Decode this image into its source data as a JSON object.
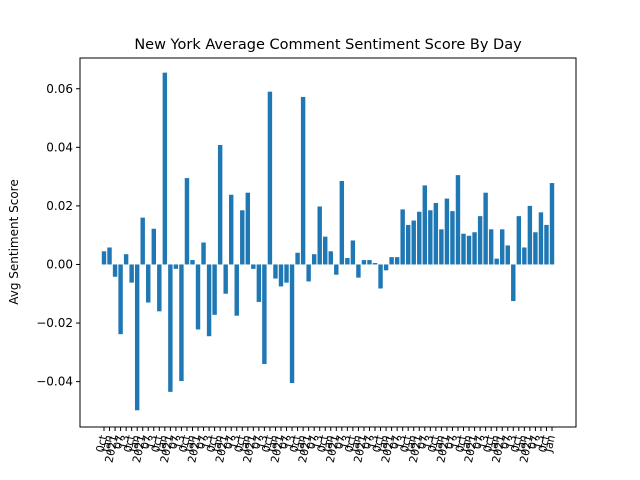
{
  "chart_data": {
    "type": "bar",
    "title": "New York Average Comment Sentiment Score By Day",
    "xlabel": "",
    "ylabel": "Avg Sentiment Score",
    "ylim": [
      -0.0555,
      0.0705
    ],
    "yticks": [
      -0.04,
      -0.02,
      0.0,
      0.02,
      0.04,
      0.06
    ],
    "ytick_labels": [
      "−0.04",
      "−0.02",
      "0.00",
      "0.02",
      "0.04",
      "0.06"
    ],
    "grid": false,
    "legend": "none",
    "bar_color": "#1f77b4",
    "tick_label_color": "#4a4a6a",
    "x_tick_labels_note": "category tick labels are rotated ~80° and fully overlapping; only fragments legible",
    "visible_tick_fragments": [
      "0ct",
      "Jan",
      "2021",
      "07",
      "13"
    ],
    "series": [
      {
        "values": [
          0.0045,
          0.0058,
          -0.0042,
          -0.0238,
          0.0035,
          -0.0062,
          -0.0498,
          0.016,
          -0.013,
          0.0122,
          -0.016,
          0.0655,
          -0.0435,
          -0.0015,
          -0.0398,
          0.0295,
          0.0015,
          -0.0222,
          0.0075,
          -0.0245,
          -0.0172,
          0.0408,
          -0.01,
          0.0238,
          -0.0175,
          0.0185,
          0.0245,
          -0.0015,
          -0.0128,
          -0.034,
          0.059,
          -0.0048,
          -0.0075,
          -0.0062,
          -0.0405,
          0.004,
          0.0572,
          -0.0058,
          0.0035,
          0.0198,
          0.0095,
          0.0045,
          -0.0035,
          0.0285,
          0.0022,
          0.0082,
          -0.0045,
          0.0015,
          0.0015,
          0.0005,
          -0.0082,
          -0.002,
          0.0025,
          0.0025,
          0.0188,
          0.0135,
          0.015,
          0.018,
          0.027,
          0.0185,
          0.021,
          0.012,
          0.0225,
          0.0182,
          0.0305,
          0.0105,
          0.0098,
          0.011,
          0.0165,
          0.0245,
          0.012,
          0.002,
          0.012,
          0.0065,
          -0.0125,
          0.0165,
          0.0058,
          0.02,
          0.011,
          0.0178,
          0.0135,
          0.0278
        ]
      }
    ]
  }
}
